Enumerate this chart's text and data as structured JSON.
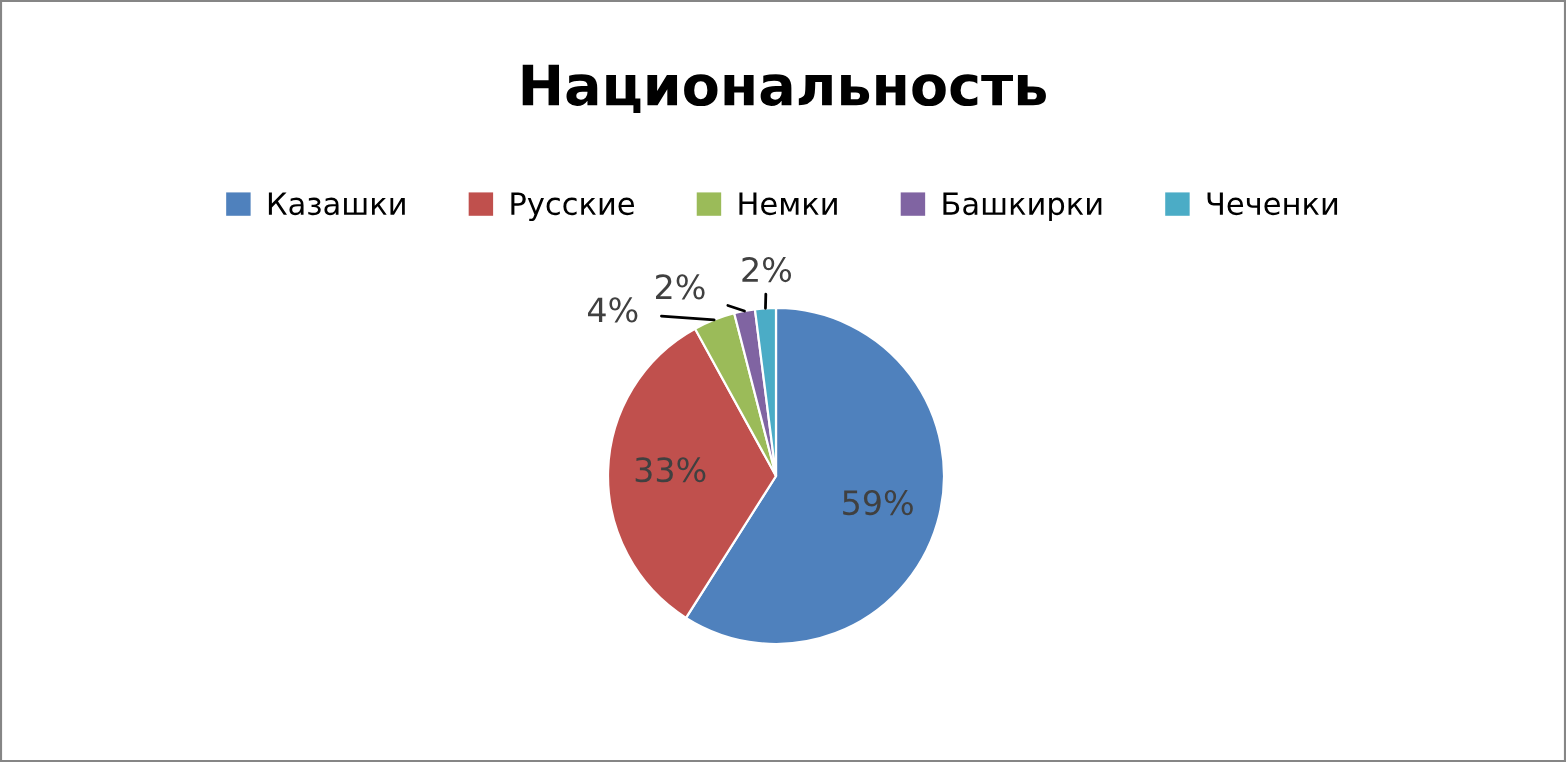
{
  "chart_data": {
    "type": "pie",
    "title": "Национальность",
    "categories": [
      "Казашки",
      "Русские",
      "Немки",
      "Башкирки",
      "Чеченки"
    ],
    "values": [
      59,
      33,
      4,
      2,
      2
    ],
    "colors": [
      "#4f81bd",
      "#c0504d",
      "#9bbb59",
      "#8064a2",
      "#4bacc6"
    ],
    "value_labels": [
      "59%",
      "33%",
      "4%",
      "2%",
      "2%"
    ],
    "legend": "top"
  }
}
